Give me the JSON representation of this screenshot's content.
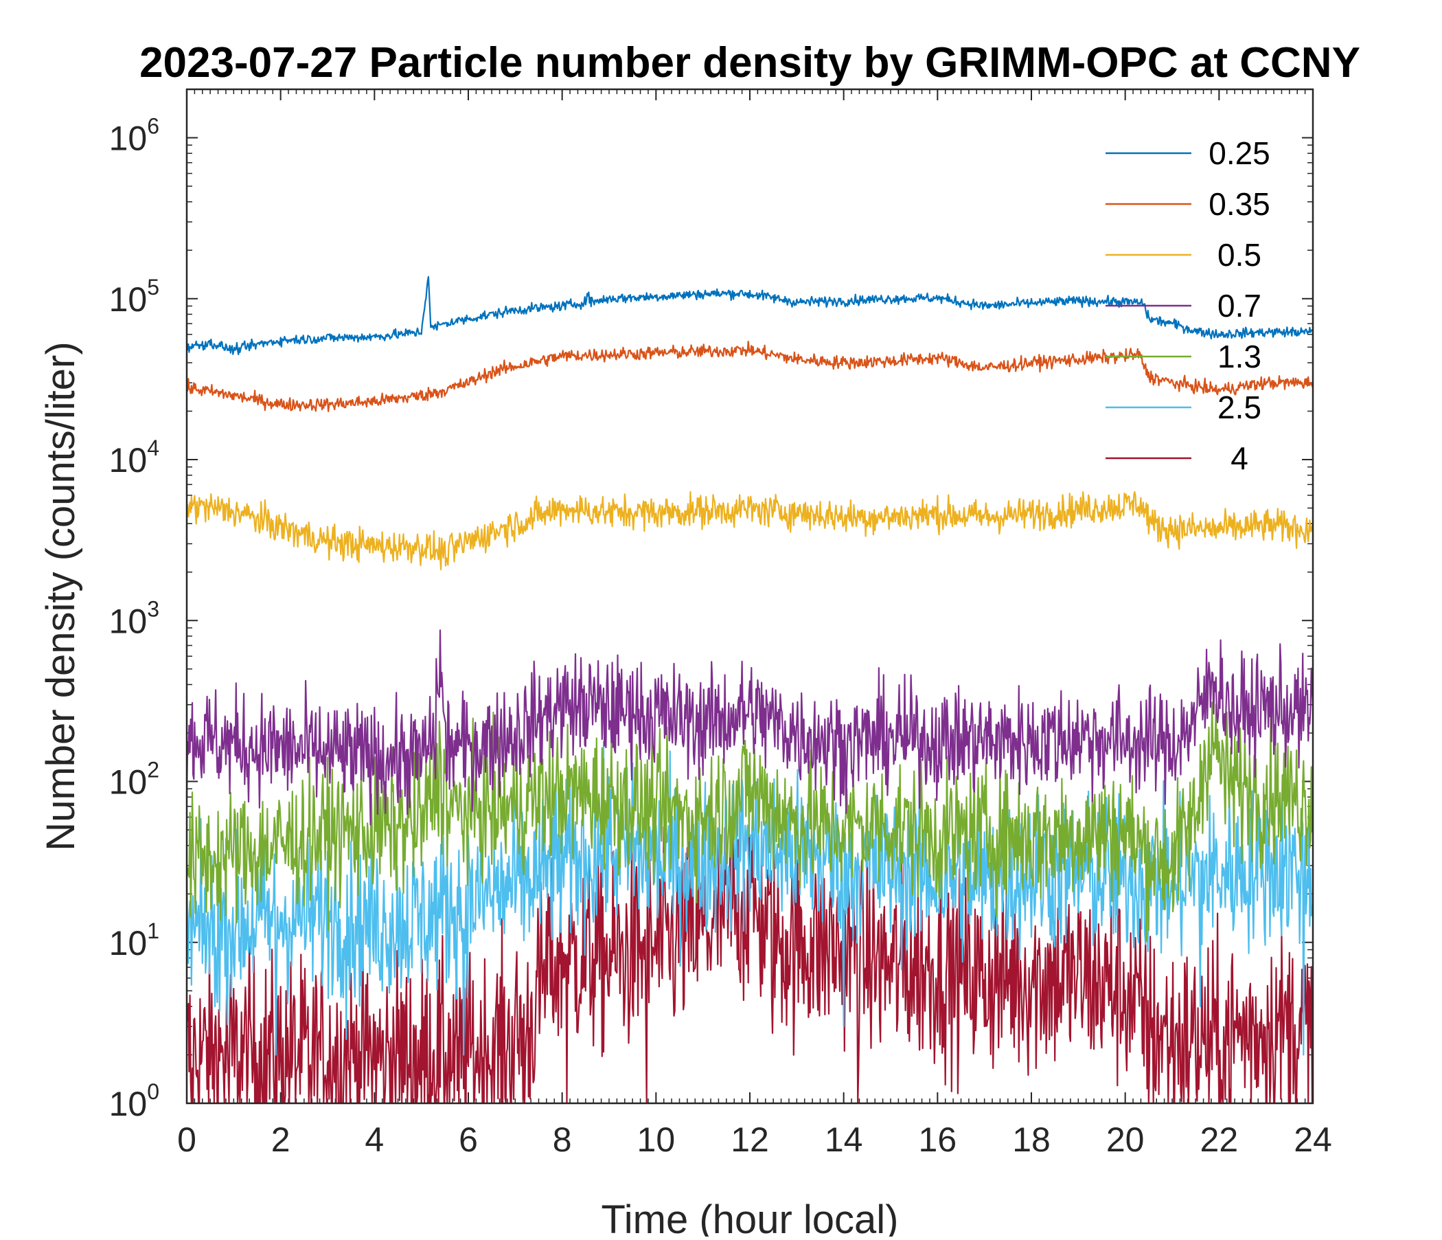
{
  "chart_data": {
    "type": "line",
    "title": "2023-07-27 Particle number density by GRIMM-OPC at CCNY",
    "xlabel": "Time (hour local)",
    "ylabel": "Number density (counts/liter)",
    "xlim": [
      0,
      24
    ],
    "ylim": [
      1,
      2000000
    ],
    "yscale": "log",
    "x_ticks": [
      0,
      2,
      4,
      6,
      8,
      10,
      12,
      14,
      16,
      18,
      20,
      22,
      24
    ],
    "x_tick_labels": [
      "0",
      "2",
      "4",
      "6",
      "8",
      "10",
      "12",
      "14",
      "16",
      "18",
      "20",
      "22",
      "24"
    ],
    "y_ticks": [
      {
        "value": 1,
        "base": "10",
        "exp": "0"
      },
      {
        "value": 10,
        "base": "10",
        "exp": "1"
      },
      {
        "value": 100,
        "base": "10",
        "exp": "2"
      },
      {
        "value": 1000,
        "base": "10",
        "exp": "3"
      },
      {
        "value": 10000,
        "base": "10",
        "exp": "4"
      },
      {
        "value": 100000,
        "base": "10",
        "exp": "5"
      },
      {
        "value": 1000000,
        "base": "10",
        "exp": "6"
      }
    ],
    "legend_position": "top-right",
    "series": [
      {
        "name": "0.25",
        "color": "#0072BD",
        "noise": 0.015,
        "x": [
          0,
          0.5,
          1,
          1.5,
          2,
          3,
          4,
          4.5,
          5,
          5.15,
          5.2,
          5.25,
          5.5,
          6,
          7,
          8,
          8.5,
          8.55,
          8.6,
          9,
          10,
          11,
          11.8,
          12.2,
          13,
          14,
          15,
          16,
          17,
          18,
          19,
          20.2,
          20.4,
          20.5,
          21,
          21.5,
          22,
          23,
          24
        ],
        "y": [
          50000,
          53000,
          48000,
          52000,
          55000,
          57000,
          58000,
          60000,
          62000,
          140000,
          65000,
          66000,
          70000,
          75000,
          85000,
          90000,
          95000,
          110000,
          95000,
          100000,
          103000,
          107000,
          108000,
          105000,
          95000,
          97000,
          100000,
          101000,
          90000,
          94000,
          97000,
          95000,
          93000,
          75000,
          70000,
          63000,
          60000,
          62000,
          62000
        ]
      },
      {
        "name": "0.35",
        "color": "#D95319",
        "noise": 0.02,
        "x": [
          0,
          1,
          2,
          3,
          4,
          5,
          5.5,
          6,
          6.5,
          7,
          8,
          9,
          10,
          11,
          12,
          13,
          14,
          15,
          16,
          17,
          18,
          19,
          20,
          20.3,
          20.5,
          21,
          22,
          23,
          24
        ],
        "y": [
          28000,
          25000,
          22000,
          22000,
          23000,
          25000,
          27000,
          30000,
          35000,
          38000,
          44000,
          45000,
          46000,
          47000,
          48000,
          42000,
          40000,
          41000,
          43000,
          37000,
          40000,
          42000,
          44000,
          45000,
          33000,
          30000,
          27000,
          30000,
          30000
        ]
      },
      {
        "name": "0.5",
        "color": "#EDB120",
        "noise": 0.05,
        "x": [
          0,
          1,
          2,
          3,
          4,
          5,
          5.5,
          6,
          7,
          8,
          9,
          10,
          11,
          12,
          13,
          14,
          15,
          16,
          17,
          18,
          19,
          20,
          20.3,
          20.6,
          21,
          22,
          23,
          24
        ],
        "y": [
          5200,
          4800,
          3800,
          3100,
          2900,
          2900,
          2600,
          3100,
          4000,
          5000,
          4700,
          4700,
          4800,
          4900,
          4700,
          4400,
          4400,
          4600,
          4400,
          4600,
          4900,
          5200,
          5400,
          3900,
          3700,
          3700,
          3900,
          3700
        ]
      },
      {
        "name": "0.7",
        "color": "#7E2F8E",
        "noise": 0.16,
        "x": [
          0,
          1,
          2,
          3,
          4,
          5,
          5.3,
          5.4,
          5.5,
          6,
          7,
          8,
          9,
          10,
          11,
          12,
          13,
          14,
          15,
          16,
          17,
          18,
          19,
          20,
          21,
          21.5,
          21.9,
          22.3,
          23,
          24
        ],
        "y": [
          190,
          170,
          160,
          150,
          140,
          140,
          200,
          650,
          170,
          160,
          200,
          300,
          280,
          260,
          230,
          270,
          200,
          170,
          190,
          180,
          180,
          180,
          190,
          180,
          170,
          240,
          450,
          260,
          290,
          260
        ],
        "spikes": [
          {
            "x": 8.6,
            "y": 520
          },
          {
            "x": 9.5,
            "y": 480
          },
          {
            "x": 12.0,
            "y": 420
          }
        ]
      },
      {
        "name": "1.3",
        "color": "#77AC30",
        "noise": 0.2,
        "x": [
          0,
          1,
          2,
          3,
          4,
          5,
          5.4,
          5.6,
          6,
          7,
          8,
          9,
          10,
          11,
          12,
          13,
          14,
          15,
          16,
          17,
          18,
          19,
          20,
          20.5,
          21,
          21.5,
          21.8,
          22.2,
          23,
          24
        ],
        "y": [
          30,
          35,
          40,
          48,
          50,
          55,
          110,
          65,
          65,
          70,
          85,
          80,
          65,
          60,
          90,
          55,
          50,
          55,
          45,
          48,
          45,
          48,
          50,
          35,
          32,
          60,
          200,
          95,
          85,
          75
        ],
        "spikes": [
          {
            "x": 8.7,
            "y": 160
          },
          {
            "x": 12.0,
            "y": 150
          },
          {
            "x": 5.4,
            "y": 180
          }
        ]
      },
      {
        "name": "2.5",
        "color": "#4DBEEE",
        "noise": 0.24,
        "x": [
          0,
          1,
          2,
          3,
          4,
          5,
          6,
          7,
          8,
          9,
          10,
          11,
          12,
          13,
          14,
          15,
          16,
          17,
          18,
          19,
          20,
          21,
          22,
          23,
          24
        ],
        "y": [
          11,
          13,
          14,
          15,
          13,
          14,
          18,
          22,
          30,
          38,
          32,
          32,
          40,
          35,
          30,
          28,
          25,
          24,
          27,
          26,
          25,
          23,
          27,
          30,
          28
        ],
        "dips": [
          {
            "x": 0.6,
            "y": 4
          },
          {
            "x": 1.9,
            "y": 2
          },
          {
            "x": 3.4,
            "y": 2.5
          },
          {
            "x": 5.9,
            "y": 2
          },
          {
            "x": 14.0,
            "y": 3
          },
          {
            "x": 21.6,
            "y": 4
          },
          {
            "x": 23.8,
            "y": 2
          }
        ],
        "spikes": [
          {
            "x": 9.5,
            "y": 130
          }
        ]
      },
      {
        "name": "4",
        "color": "#A2142F",
        "noise": 0.3,
        "x": [
          0,
          1,
          2,
          3,
          4,
          5,
          6,
          7,
          7.3,
          7.6,
          8,
          9,
          10,
          11,
          12,
          12.5,
          13,
          14,
          15,
          16,
          17,
          18,
          19,
          20,
          20.5,
          21,
          22,
          23,
          24
        ],
        "y": [
          2,
          2,
          2,
          2,
          2,
          2,
          2,
          2.5,
          3,
          6,
          8,
          8,
          9,
          12,
          18,
          10,
          10,
          9,
          7,
          7,
          6,
          6,
          6,
          5,
          3,
          2.5,
          2.5,
          3,
          3
        ],
        "dips": [
          {
            "x": 0.1,
            "y": 1
          },
          {
            "x": 0.9,
            "y": 1
          },
          {
            "x": 1.7,
            "y": 1
          },
          {
            "x": 2.6,
            "y": 1
          },
          {
            "x": 3.3,
            "y": 1
          },
          {
            "x": 4.2,
            "y": 1
          },
          {
            "x": 5.0,
            "y": 1
          },
          {
            "x": 5.8,
            "y": 1
          },
          {
            "x": 6.5,
            "y": 1
          },
          {
            "x": 7.2,
            "y": 1
          },
          {
            "x": 8.1,
            "y": 1
          },
          {
            "x": 9.8,
            "y": 1
          },
          {
            "x": 14.3,
            "y": 1
          },
          {
            "x": 20.6,
            "y": 1
          },
          {
            "x": 22.0,
            "y": 1
          },
          {
            "x": 23.9,
            "y": 1
          }
        ],
        "spikes": [
          {
            "x": 12.0,
            "y": 35
          },
          {
            "x": 7.7,
            "y": 20
          }
        ]
      }
    ]
  }
}
